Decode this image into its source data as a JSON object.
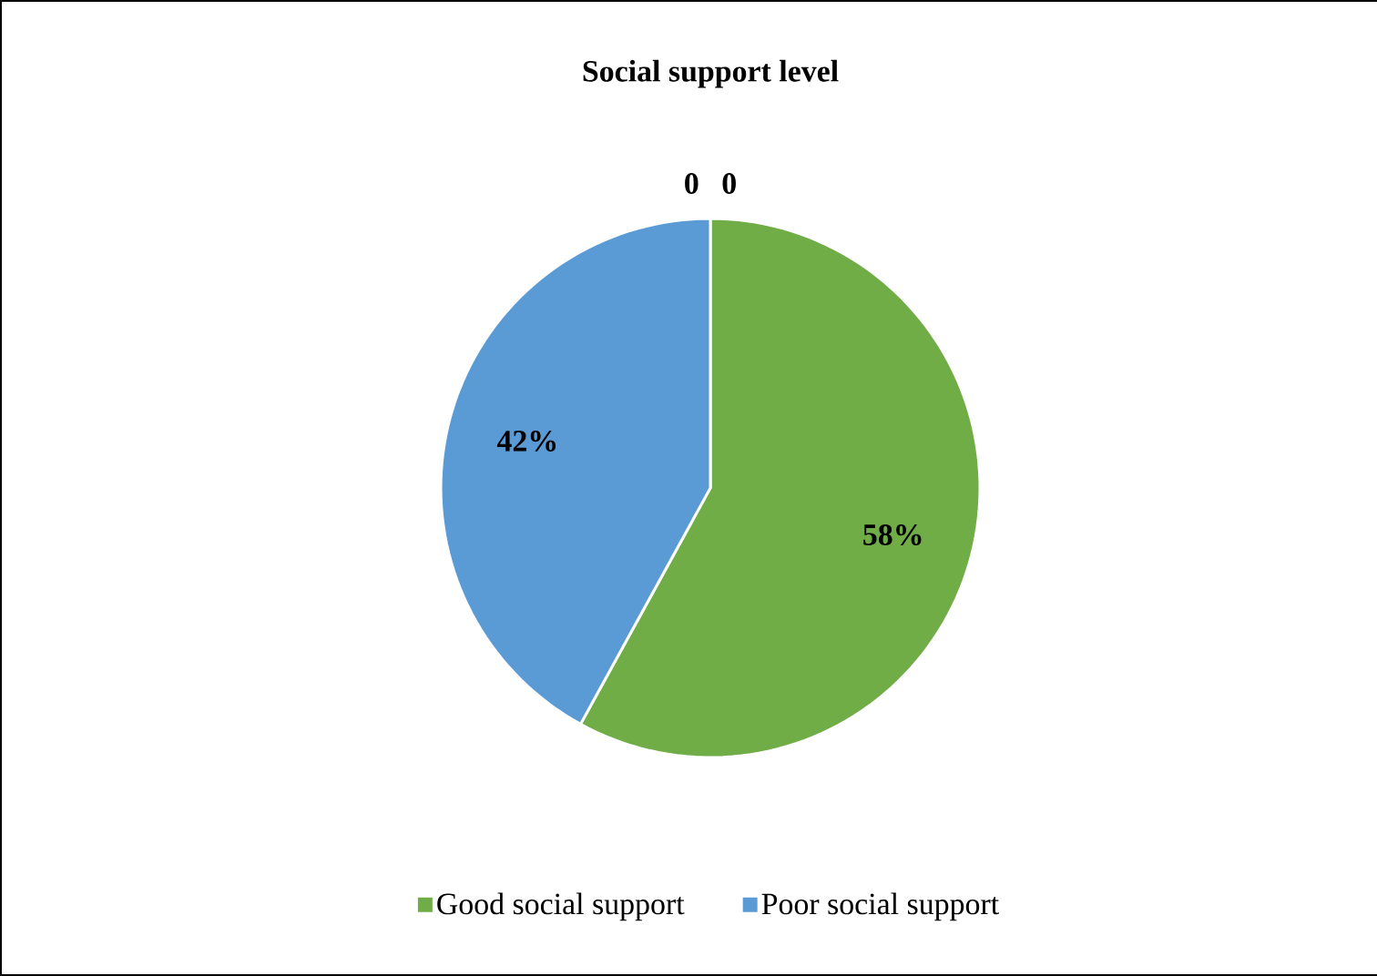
{
  "chart_data": {
    "type": "pie",
    "title": "Social support level",
    "categories": [
      "Good social support",
      "Poor social support",
      null,
      null
    ],
    "values": [
      58,
      42,
      0,
      0
    ],
    "colors": [
      "#70ad47",
      "#5b9bd5",
      "#a5a5a5",
      "#ffc000"
    ],
    "value_labels": [
      "58%",
      "42%",
      "0",
      "0"
    ],
    "legend": "bottom"
  }
}
